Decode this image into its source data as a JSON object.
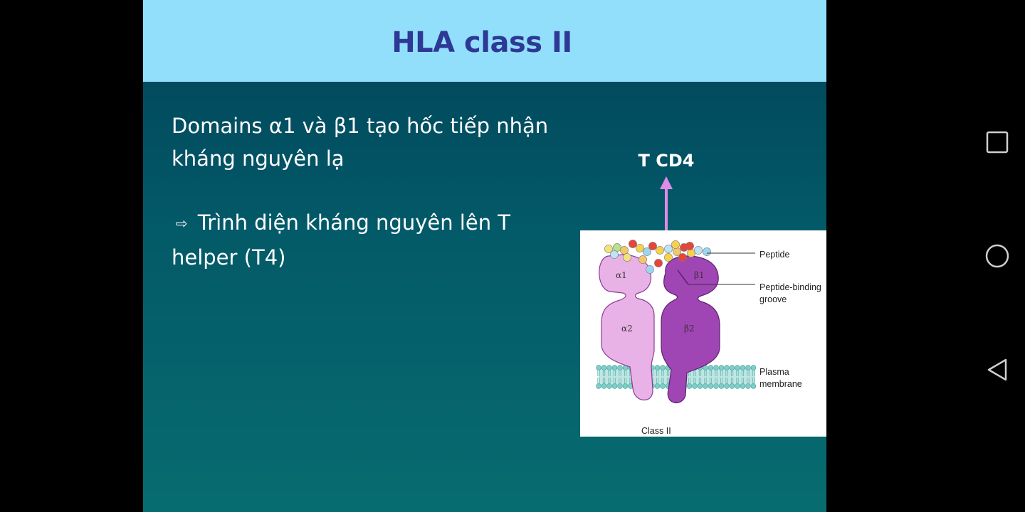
{
  "slide": {
    "title": "HLA class II",
    "paragraph1": "Domains  α1 và β1 tạo hốc tiếp nhận kháng nguyên lạ",
    "bullet_symbol": "⇨",
    "paragraph2": "Trình diện kháng nguyên lên T helper (T4)",
    "tcd4_label": "T CD4",
    "arrow_color": "#e08be6"
  },
  "diagram": {
    "label_peptide": "Peptide",
    "label_groove_line1": "Peptide-binding",
    "label_groove_line2": "groove",
    "label_membrane_line1": "Plasma",
    "label_membrane_line2": "membrane",
    "caption": "Class II",
    "domain_alpha1": "α1",
    "domain_beta1": "β1",
    "domain_alpha2": "α2",
    "domain_beta2": "β2",
    "colors": {
      "alpha_chain": "#e8b2e6",
      "beta_chain": "#a046b4",
      "membrane": "#7fcfc8"
    }
  },
  "nav": {
    "recents_icon": "square-icon",
    "home_icon": "circle-icon",
    "back_icon": "triangle-back-icon"
  }
}
